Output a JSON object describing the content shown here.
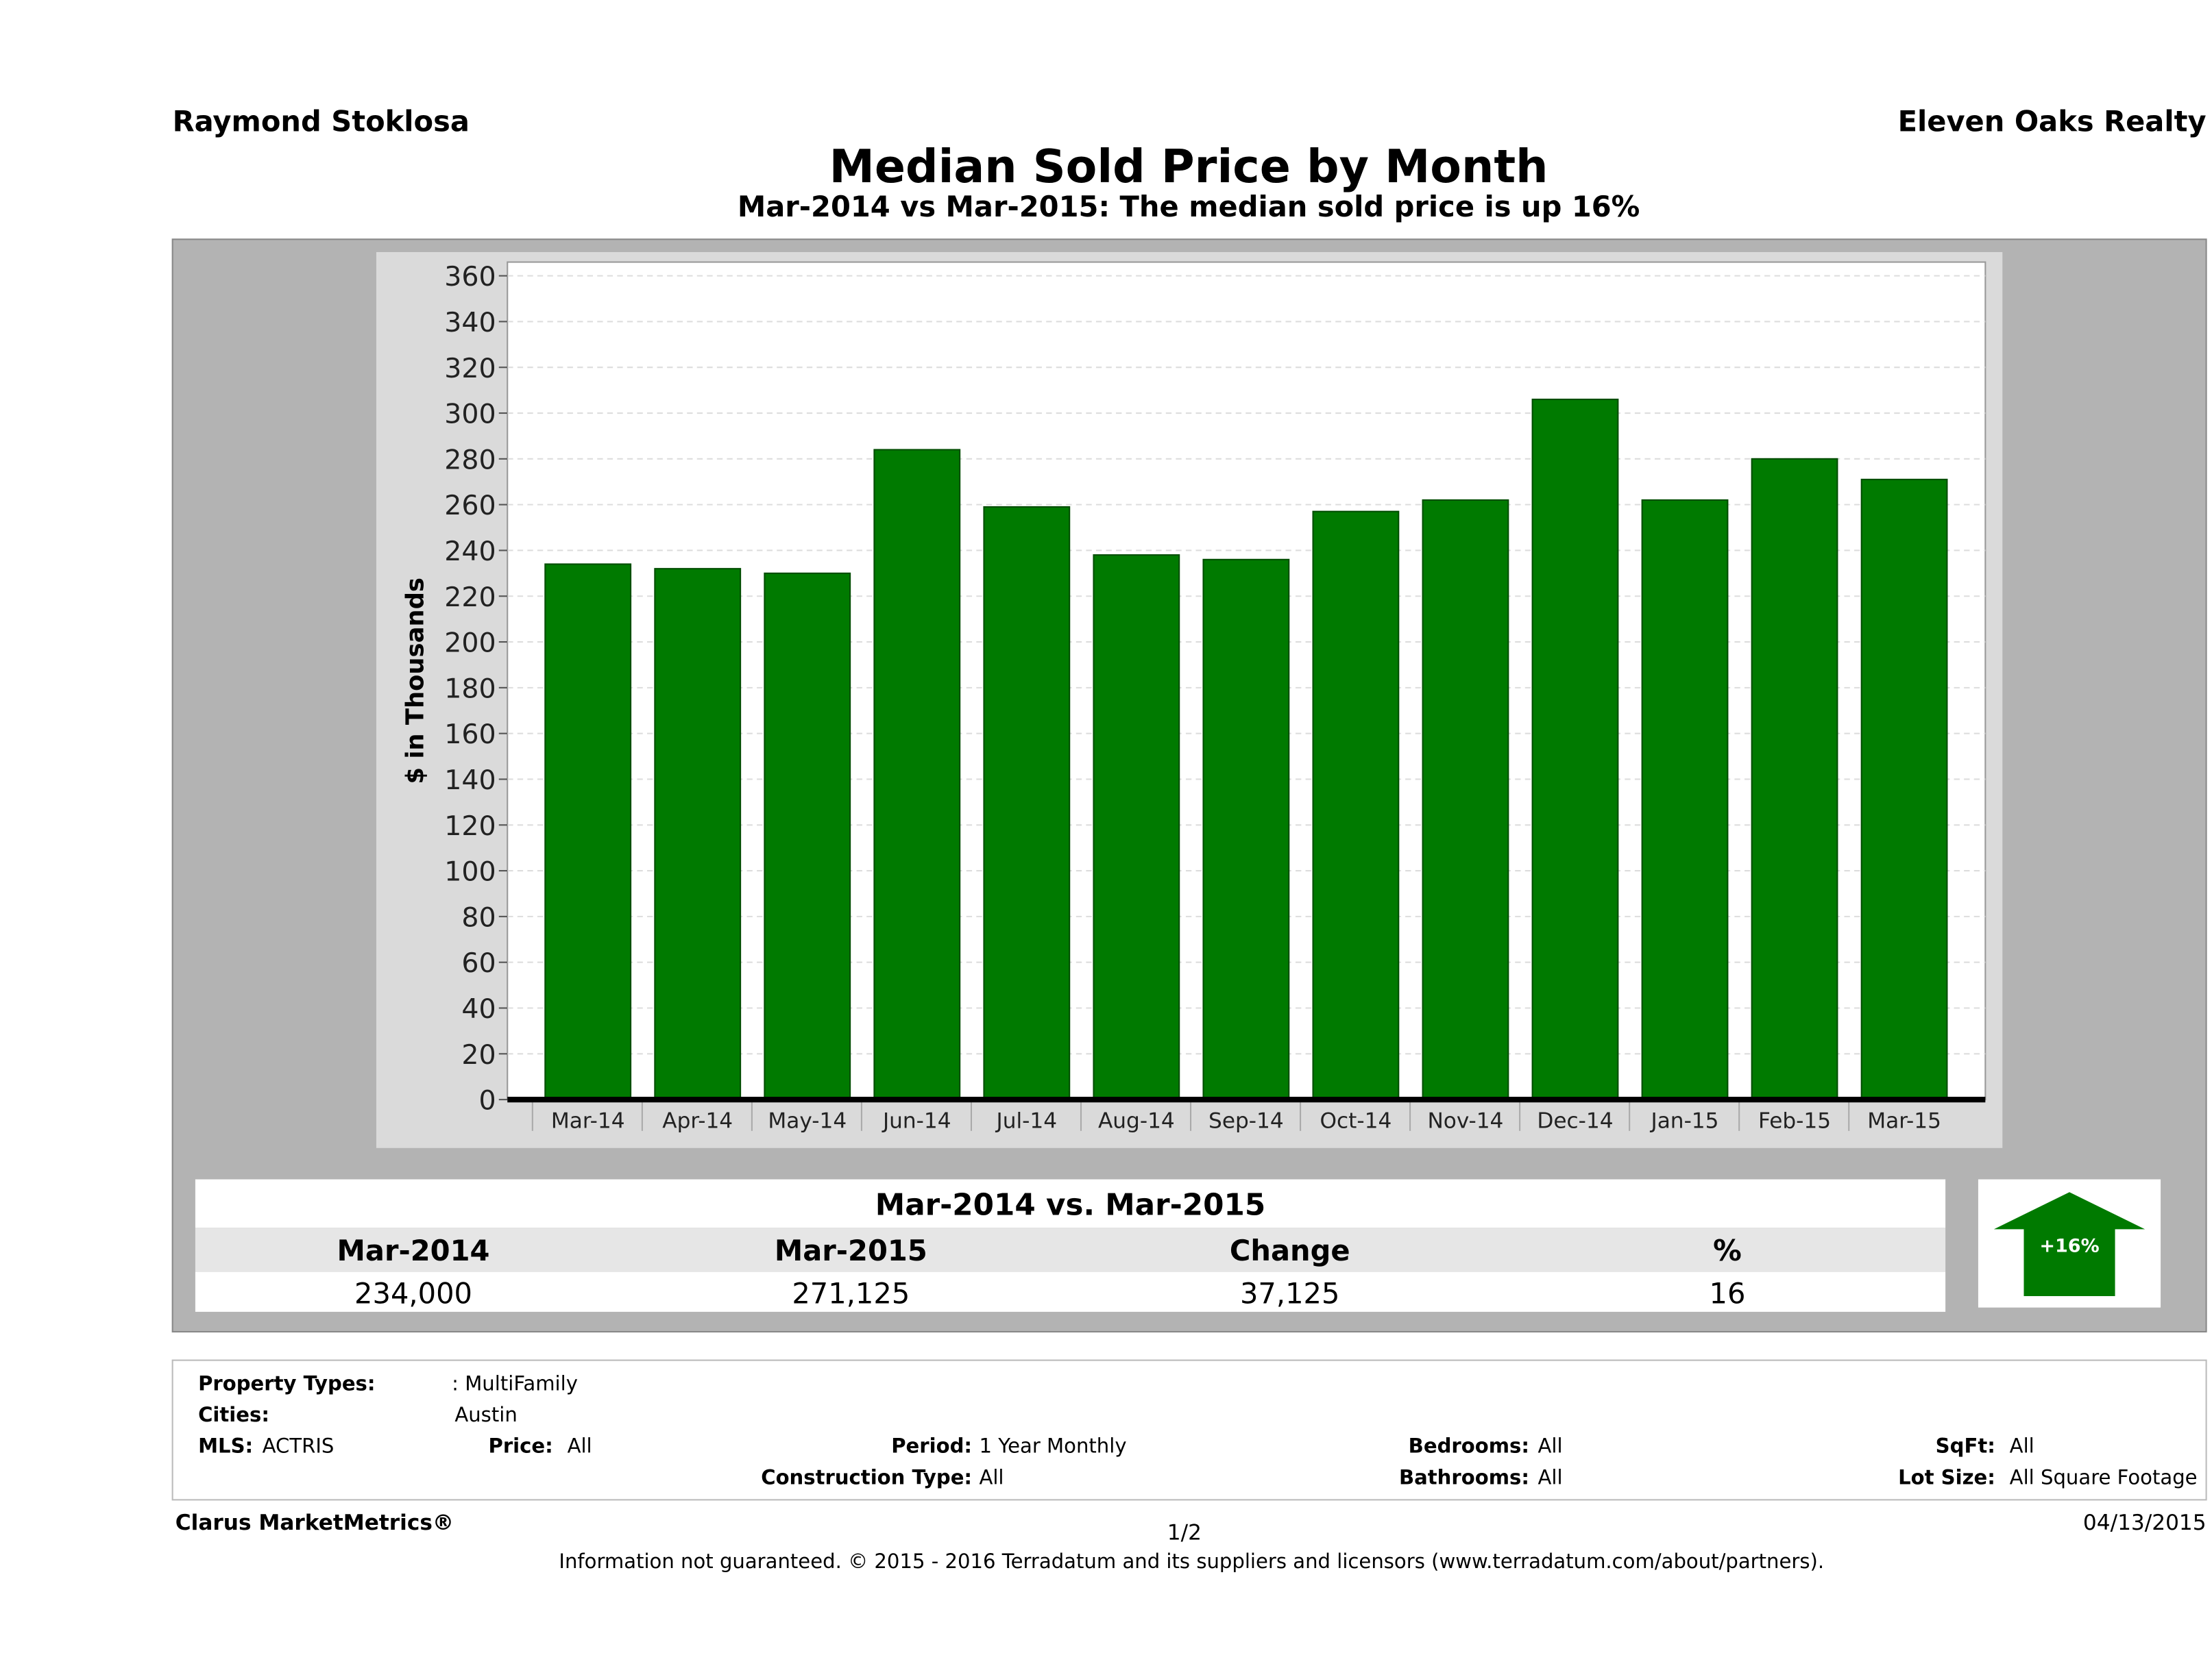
{
  "header": {
    "agent": "Raymond Stoklosa",
    "company": "Eleven Oaks Realty"
  },
  "chart_data": {
    "type": "bar",
    "title": "Median Sold Price by Month",
    "subtitle": "Mar-2014 vs Mar-2015: The median sold price is up 16%",
    "y_label": "$ in Thousands",
    "categories": [
      "Mar-14",
      "Apr-14",
      "May-14",
      "Jun-14",
      "Jul-14",
      "Aug-14",
      "Sep-14",
      "Oct-14",
      "Nov-14",
      "Dec-14",
      "Jan-15",
      "Feb-15",
      "Mar-15"
    ],
    "values": [
      234,
      232,
      230,
      284,
      259,
      238,
      236,
      257,
      262,
      306,
      262,
      280,
      271
    ],
    "color": "#007a00",
    "ylim": [
      0,
      366
    ],
    "yticks": [
      0,
      20,
      40,
      60,
      80,
      100,
      120,
      140,
      160,
      180,
      200,
      220,
      240,
      260,
      280,
      300,
      320,
      340,
      360
    ],
    "grid": true
  },
  "comparison": {
    "title": "Mar-2014 vs. Mar-2015",
    "columns": [
      "Mar-2014",
      "Mar-2015",
      "Change",
      "%"
    ],
    "values": [
      "234,000",
      "271,125",
      "37,125",
      "16"
    ],
    "badge": "+16%"
  },
  "filters": [
    {
      "label": "Property Types:",
      "value": ": MultiFamily"
    },
    {
      "label": "Cities:",
      "value": "Austin"
    },
    {
      "label": "MLS:",
      "value": "ACTRIS"
    },
    {
      "label": "Price:",
      "value": "All"
    },
    {
      "label": "Period:",
      "value": "1 Year Monthly"
    },
    {
      "label": "Bedrooms:",
      "value": "All"
    },
    {
      "label": "SqFt:",
      "value": "All"
    },
    {
      "label": "Construction Type:",
      "value": "All"
    },
    {
      "label": "Bathrooms:",
      "value": "All"
    },
    {
      "label": "Lot Size:",
      "value": "All Square Footage"
    }
  ],
  "footer": {
    "brand": "Clarus MarketMetrics®",
    "page": "1/2",
    "disclaimer": "Information not guaranteed. © 2015 - 2016 Terradatum and its suppliers and licensors (www.terradatum.com/about/partners).",
    "date": "04/13/2015"
  }
}
